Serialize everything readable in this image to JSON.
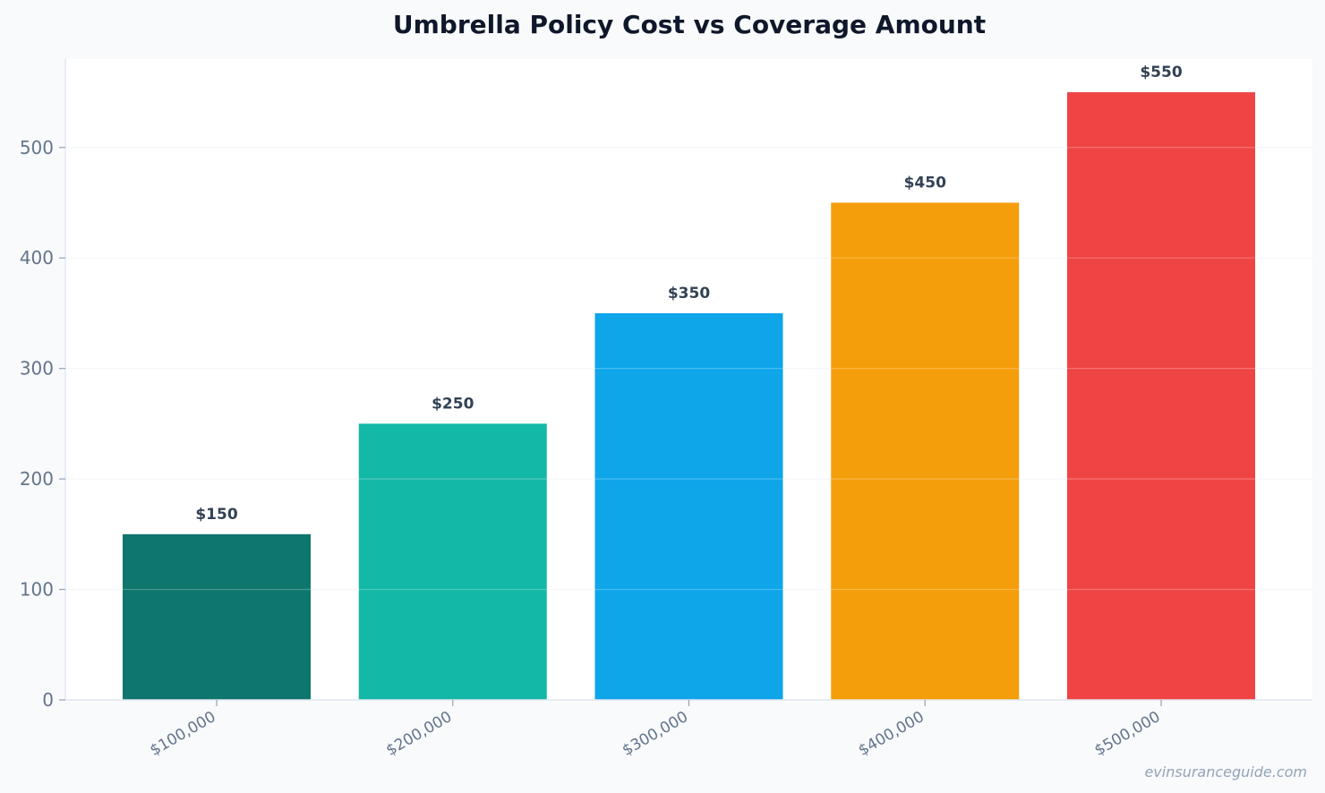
{
  "chart_data": {
    "type": "bar",
    "title": "Umbrella Policy Cost vs Coverage Amount",
    "xlabel": "",
    "ylabel": "",
    "categories": [
      "$100,000",
      "$200,000",
      "$300,000",
      "$400,000",
      "$500,000"
    ],
    "values": [
      150,
      250,
      350,
      450,
      550
    ],
    "data_labels": [
      "$150",
      "$250",
      "$350",
      "$450",
      "$550"
    ],
    "bar_colors": [
      "#0f766e",
      "#14b8a6",
      "#0ea5e9",
      "#f59e0b",
      "#ef4444"
    ],
    "ylim": [
      0,
      580
    ],
    "yticks": [
      0,
      100,
      200,
      300,
      400,
      500
    ],
    "grid": true,
    "legend": "none"
  },
  "watermark": "evinsuranceguide.com"
}
